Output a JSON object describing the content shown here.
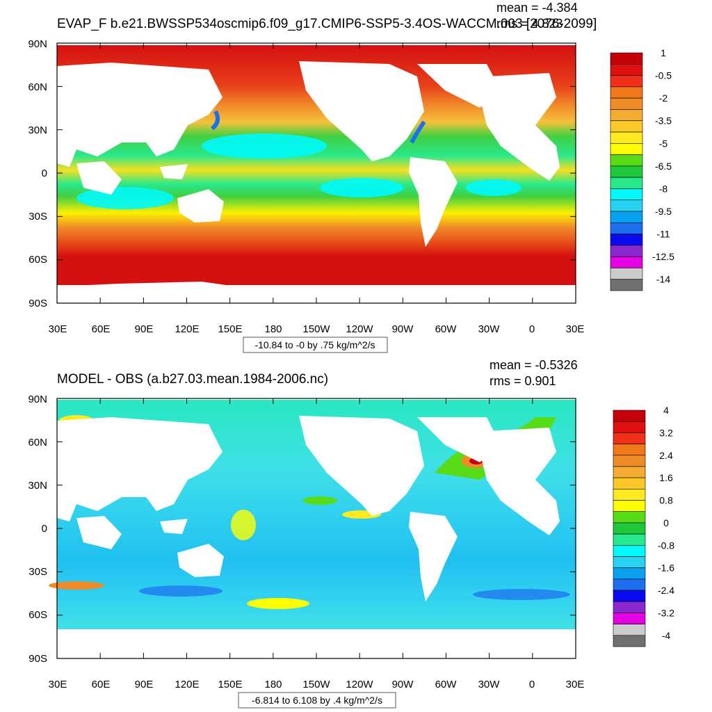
{
  "panels": [
    {
      "title": "EVAP_F b.e21.BWSSP534oscmip6.f09_g17.CMIP6-SSP5-3.4OS-WACCM.003 [2076-2099]",
      "mean": "mean = -4.384",
      "rms": "rms = 4.823",
      "range_label": "-10.84 to -0 by .75 kg/m^2/s",
      "lat_ticks": [
        "90N",
        "60N",
        "30N",
        "0",
        "30S",
        "60S",
        "90S"
      ],
      "lon_ticks": [
        "30E",
        "60E",
        "90E",
        "120E",
        "150E",
        "180",
        "150W",
        "120W",
        "90W",
        "60W",
        "30W",
        "0",
        "30E"
      ],
      "colorbar": {
        "labels": [
          "1",
          "-0.5",
          "-2",
          "-3.5",
          "-5",
          "-6.5",
          "-8",
          "-9.5",
          "-11",
          "-12.5",
          "-14"
        ],
        "colors": [
          "#c8000a",
          "#e01010",
          "#f03018",
          "#f07818",
          "#f08c28",
          "#f5ac32",
          "#fcc828",
          "#ffea20",
          "#ffff00",
          "#58dc18",
          "#1ec83a",
          "#28e88c",
          "#00fafa",
          "#28d2f0",
          "#0aa0f0",
          "#1e6ef0",
          "#0a0af0",
          "#8c28d2",
          "#e600e6",
          "#cccccc",
          "#707070"
        ]
      }
    },
    {
      "title": "MODEL - OBS (a.b27.03.mean.1984-2006.nc)",
      "mean": "mean = -0.5326",
      "rms": "rms = 0.901",
      "range_label": "-6.814 to 6.108 by .4 kg/m^2/s",
      "lat_ticks": [
        "90N",
        "60N",
        "30N",
        "0",
        "30S",
        "60S",
        "90S"
      ],
      "lon_ticks": [
        "30E",
        "60E",
        "90E",
        "120E",
        "150E",
        "180",
        "150W",
        "120W",
        "90W",
        "60W",
        "30W",
        "0",
        "30E"
      ],
      "colorbar": {
        "labels": [
          "4",
          "3.2",
          "2.4",
          "1.6",
          "0.8",
          "0",
          "-0.8",
          "-1.6",
          "-2.4",
          "-3.2",
          "-4"
        ],
        "colors": [
          "#c8000a",
          "#e01010",
          "#f03018",
          "#f07818",
          "#f08c28",
          "#f5ac32",
          "#fcc828",
          "#ffea20",
          "#ffff00",
          "#58dc18",
          "#1ec83a",
          "#28e88c",
          "#00fafa",
          "#28d2f0",
          "#0aa0f0",
          "#1e6ef0",
          "#0a0af0",
          "#8c28d2",
          "#e600e6",
          "#cccccc",
          "#707070"
        ]
      }
    }
  ]
}
